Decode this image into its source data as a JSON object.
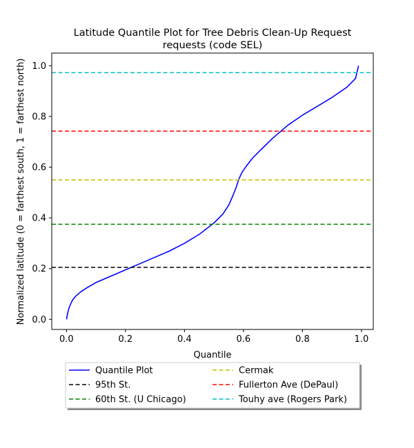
{
  "chart_data": {
    "type": "line",
    "title_line1": "Latitude Quantile Plot for Tree Debris Clean-Up Request",
    "title_line2": "requests (code SEL)",
    "xlabel": "Quantile",
    "ylabel": "Normalized latitude (0 = farthest south, 1 = farthest north)",
    "xlim": [
      -0.05,
      1.04
    ],
    "ylim": [
      -0.04,
      1.05
    ],
    "x_ticks": [
      0.0,
      0.2,
      0.4,
      0.6,
      0.8,
      1.0
    ],
    "x_tick_labels": [
      "0.0",
      "0.2",
      "0.4",
      "0.6",
      "0.8",
      "1.0"
    ],
    "y_ticks": [
      0.0,
      0.2,
      0.4,
      0.6,
      0.8,
      1.0
    ],
    "y_tick_labels": [
      "0.0",
      "0.2",
      "0.4",
      "0.6",
      "0.8",
      "1.0"
    ],
    "grid": false,
    "legend_position": "below",
    "series": [
      {
        "name": "Quantile Plot",
        "color": "#0000ff",
        "style": "solid",
        "x": [
          0.0,
          0.005,
          0.01,
          0.02,
          0.03,
          0.05,
          0.07,
          0.1,
          0.13,
          0.16,
          0.2,
          0.25,
          0.3,
          0.35,
          0.4,
          0.45,
          0.5,
          0.53,
          0.55,
          0.565,
          0.575,
          0.585,
          0.595,
          0.61,
          0.63,
          0.66,
          0.7,
          0.75,
          0.8,
          0.85,
          0.9,
          0.95,
          0.98,
          0.99
        ],
        "y": [
          0.0,
          0.03,
          0.05,
          0.075,
          0.09,
          0.11,
          0.125,
          0.145,
          0.16,
          0.175,
          0.195,
          0.22,
          0.245,
          0.27,
          0.3,
          0.335,
          0.38,
          0.415,
          0.45,
          0.49,
          0.52,
          0.555,
          0.58,
          0.605,
          0.635,
          0.67,
          0.715,
          0.765,
          0.805,
          0.84,
          0.875,
          0.915,
          0.95,
          1.0
        ]
      },
      {
        "name": "95th St.",
        "color": "#000000",
        "style": "dashed",
        "y_constant": 0.205
      },
      {
        "name": "60th St. (U Chicago)",
        "color": "#008000",
        "style": "dashed",
        "y_constant": 0.375
      },
      {
        "name": "Cermak",
        "color": "#bfbf00",
        "style": "dashed",
        "y_constant": 0.55
      },
      {
        "name": "Fullerton Ave (DePaul)",
        "color": "#ff0000",
        "style": "dashed",
        "y_constant": 0.742
      },
      {
        "name": "Touhy ave (Rogers Park)",
        "color": "#00bfbf",
        "style": "dashed",
        "y_constant": 0.973
      }
    ]
  }
}
